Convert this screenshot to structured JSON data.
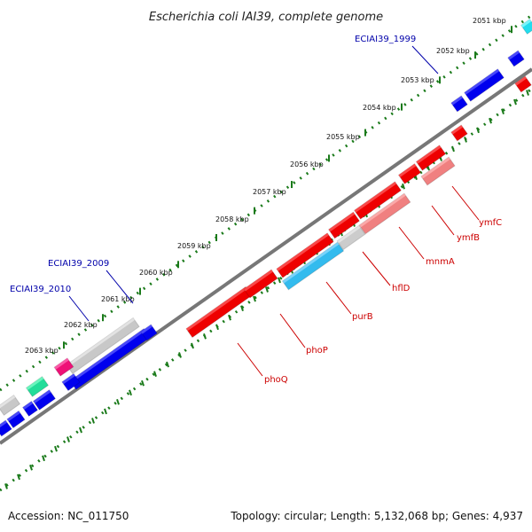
{
  "title": "Escherichia coli IAI39, complete genome",
  "footer": {
    "accession": "Accession: NC_011750",
    "summary": "Topology: circular; Length: 5,132,068 bp; Genes: 4,937"
  },
  "colors": {
    "backbone": "#777777",
    "tick": "#1a7a1a",
    "label_blue": "#0000aa",
    "label_red": "#cc0000"
  },
  "ticks": [
    "2051 kbp",
    "2052 kbp",
    "2053 kbp",
    "2054 kbp",
    "2055 kbp",
    "2056 kbp",
    "2057 kbp",
    "2058 kbp",
    "2059 kbp",
    "2060 kbp",
    "2061 kbp",
    "2062 kbp",
    "2063 kbp"
  ],
  "upper_labels": [
    "ECIAI39_1999",
    "ECIAI39_2009",
    "ECIAI39_2010"
  ],
  "lower_labels": [
    "ymfC",
    "ymfB",
    "mnmA",
    "hflD",
    "purB",
    "phoP",
    "phoQ"
  ]
}
